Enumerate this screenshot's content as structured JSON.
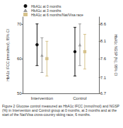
{
  "chart_data": {
    "type": "errorbar",
    "categories": [
      "Intervention",
      "Control"
    ],
    "y_label": "HbA1c IFCC (mmol/mol), 95% CI",
    "y2_label": "HbA1c NGSP (%), 95% CI",
    "ylim": [
      50,
      72
    ],
    "yticks": [
      50,
      60,
      70
    ],
    "y2lim": [
      6.72,
      8.74
    ],
    "y2ticks": [
      {
        "value": 6.72,
        "label": "6.7"
      },
      {
        "value": 7.14,
        "label": "7.1"
      },
      {
        "value": 7.64,
        "label": "7.6"
      },
      {
        "value": 8.1,
        "label": "8.1"
      },
      {
        "value": 8.55,
        "label": "8.6"
      }
    ],
    "legend": "top-left",
    "series": [
      {
        "name": "HbA1c at 0 months",
        "color": "#111111",
        "marker": "circle",
        "values": [
          64,
          62
        ],
        "ci_low": [
          58,
          55
        ],
        "ci_high": [
          70,
          69
        ]
      },
      {
        "name": "HbA1c at 3 months",
        "color": "#9a9a9a",
        "marker": "triangle",
        "values": [
          61,
          64
        ],
        "ci_low": [
          56,
          58
        ],
        "ci_high": [
          66,
          70
        ]
      },
      {
        "name": "HbA1c at 6 months/Nat/Visa race",
        "color": "#d6c28c",
        "marker": "square",
        "values": [
          60,
          62
        ],
        "ci_low": [
          55,
          57
        ],
        "ci_high": [
          65,
          67
        ]
      }
    ],
    "caption": "Figure 2 Glucose control measured as HbA1c IFCC (mmol/mol) and NGSP (%) in Intervention and Control group at 0 months, at 3 months and at the start of the Nat/Visa cross-country skiing race, 6 months."
  }
}
